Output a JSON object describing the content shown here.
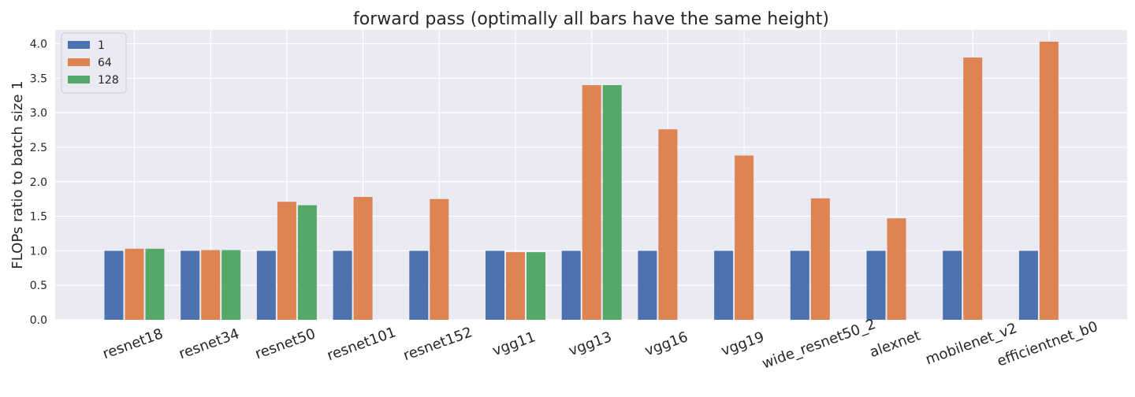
{
  "chart_data": {
    "type": "bar",
    "title": "forward pass (optimally all bars have the same height)",
    "xlabel": "",
    "ylabel": "FLOPs ratio to batch size 1",
    "ylim": [
      0,
      4.2
    ],
    "yticks": [
      "0.0",
      "0.5",
      "1.0",
      "1.5",
      "2.0",
      "2.5",
      "3.0",
      "3.5",
      "4.0"
    ],
    "grid": true,
    "legend_position": "top-left",
    "categories": [
      "resnet18",
      "resnet34",
      "resnet50",
      "resnet101",
      "resnet152",
      "vgg11",
      "vgg13",
      "vgg16",
      "vgg19",
      "wide_resnet50_2",
      "alexnet",
      "mobilenet_v2",
      "efficientnet_b0"
    ],
    "series": [
      {
        "name": "1",
        "color": "#4c72b0",
        "values": [
          1.0,
          1.0,
          1.0,
          1.0,
          1.0,
          1.0,
          1.0,
          1.0,
          1.0,
          1.0,
          1.0,
          1.0,
          1.0
        ]
      },
      {
        "name": "64",
        "color": "#dd8452",
        "values": [
          1.03,
          1.01,
          1.71,
          1.78,
          1.75,
          0.98,
          3.4,
          2.76,
          2.38,
          1.76,
          1.47,
          3.8,
          4.03
        ]
      },
      {
        "name": "128",
        "color": "#55a868",
        "values": [
          1.03,
          1.01,
          1.66,
          null,
          null,
          0.98,
          3.4,
          null,
          null,
          null,
          null,
          null,
          null
        ]
      }
    ]
  }
}
